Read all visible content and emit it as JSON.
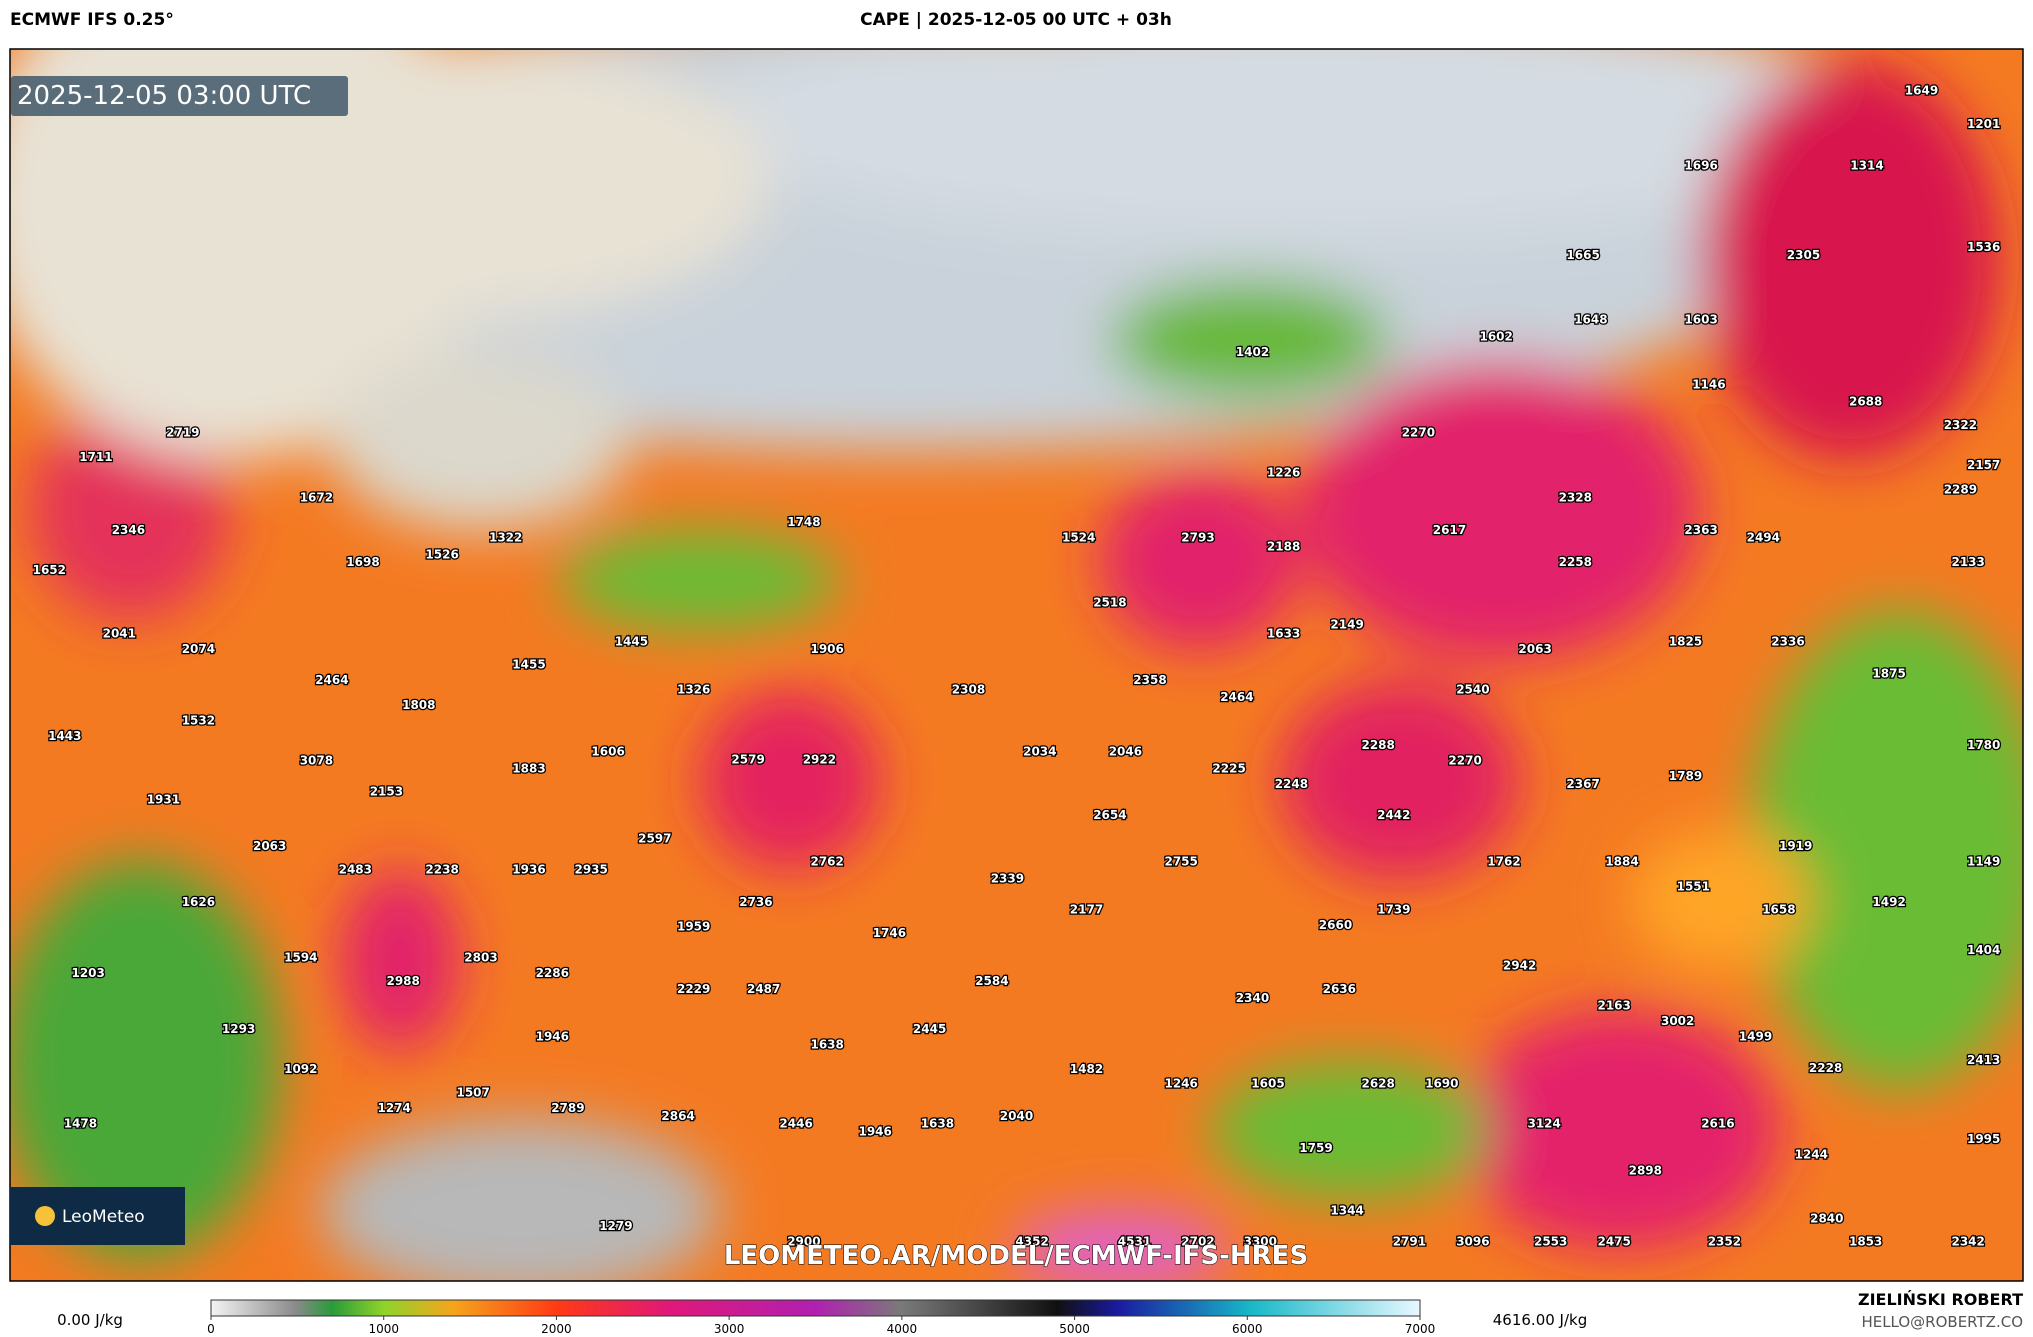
{
  "header": {
    "model": "ECMWF IFS 0.25°",
    "title": "CAPE | 2025-12-05 00 UTC + 03h"
  },
  "map": {
    "timestamp": "2025-12-05 03:00 UTC",
    "watermark": "LEOMETEO.AR/MODEL/ECMWF-IFS-HRES",
    "logo": "LeoMeteo",
    "labels": [
      1649,
      1201,
      1696,
      1314,
      1536,
      1665,
      2305,
      1648,
      1603,
      1602,
      1402,
      1146,
      2688,
      2270,
      2322,
      2719,
      1711,
      1226,
      2157,
      2328,
      2289,
      1672,
      1748,
      2617,
      2363,
      2494,
      2346,
      1322,
      1524,
      2793,
      2188,
      1698,
      1526,
      2258,
      2133,
      1652,
      2518,
      1633,
      2149,
      2041,
      2074,
      1445,
      1906,
      2063,
      1825,
      2336,
      1455,
      1875,
      2464,
      2308,
      2358,
      1326,
      2540,
      2464,
      1808,
      1532,
      2579,
      2922,
      1443,
      2034,
      2046,
      2288,
      2270,
      1780,
      3078,
      1883,
      1606,
      2225,
      2248,
      2367,
      1789,
      2153,
      1931,
      2654,
      2442,
      2597,
      2063,
      2762,
      2755,
      1762,
      1884,
      1919,
      1149,
      2935,
      2483,
      2238,
      1936,
      2339,
      1551,
      1626,
      2736,
      2177,
      1739,
      1658,
      1492,
      1959,
      1746,
      2660,
      1594,
      2803,
      1404,
      2942,
      1203,
      2286,
      2988,
      2584,
      2229,
      2487,
      2340,
      2636,
      2163,
      3002,
      1293,
      2445,
      1946,
      1499,
      1638,
      2228,
      2413,
      1092,
      1482,
      1246,
      1605,
      2628,
      1690,
      1507,
      1274,
      2789,
      2864,
      2040,
      1478,
      2446,
      1946,
      1638,
      2616,
      3124,
      1995,
      1759,
      1244,
      2898,
      1344,
      2840,
      1279,
      2900,
      4352,
      4531,
      2702,
      3300,
      2791,
      3096,
      2553,
      2475,
      2352,
      1853,
      2342
    ]
  },
  "colorbar": {
    "lim": [
      0,
      7000
    ],
    "ticks": [
      0,
      1000,
      2000,
      3000,
      4000,
      5000,
      6000,
      7000
    ],
    "min_label": "0.00 J/kg",
    "max_label": "4616.00 J/kg"
  },
  "footer": {
    "author": "ZIELIŃSKI ROBERT",
    "email": "HELLO@ROBERTZ.CO"
  }
}
